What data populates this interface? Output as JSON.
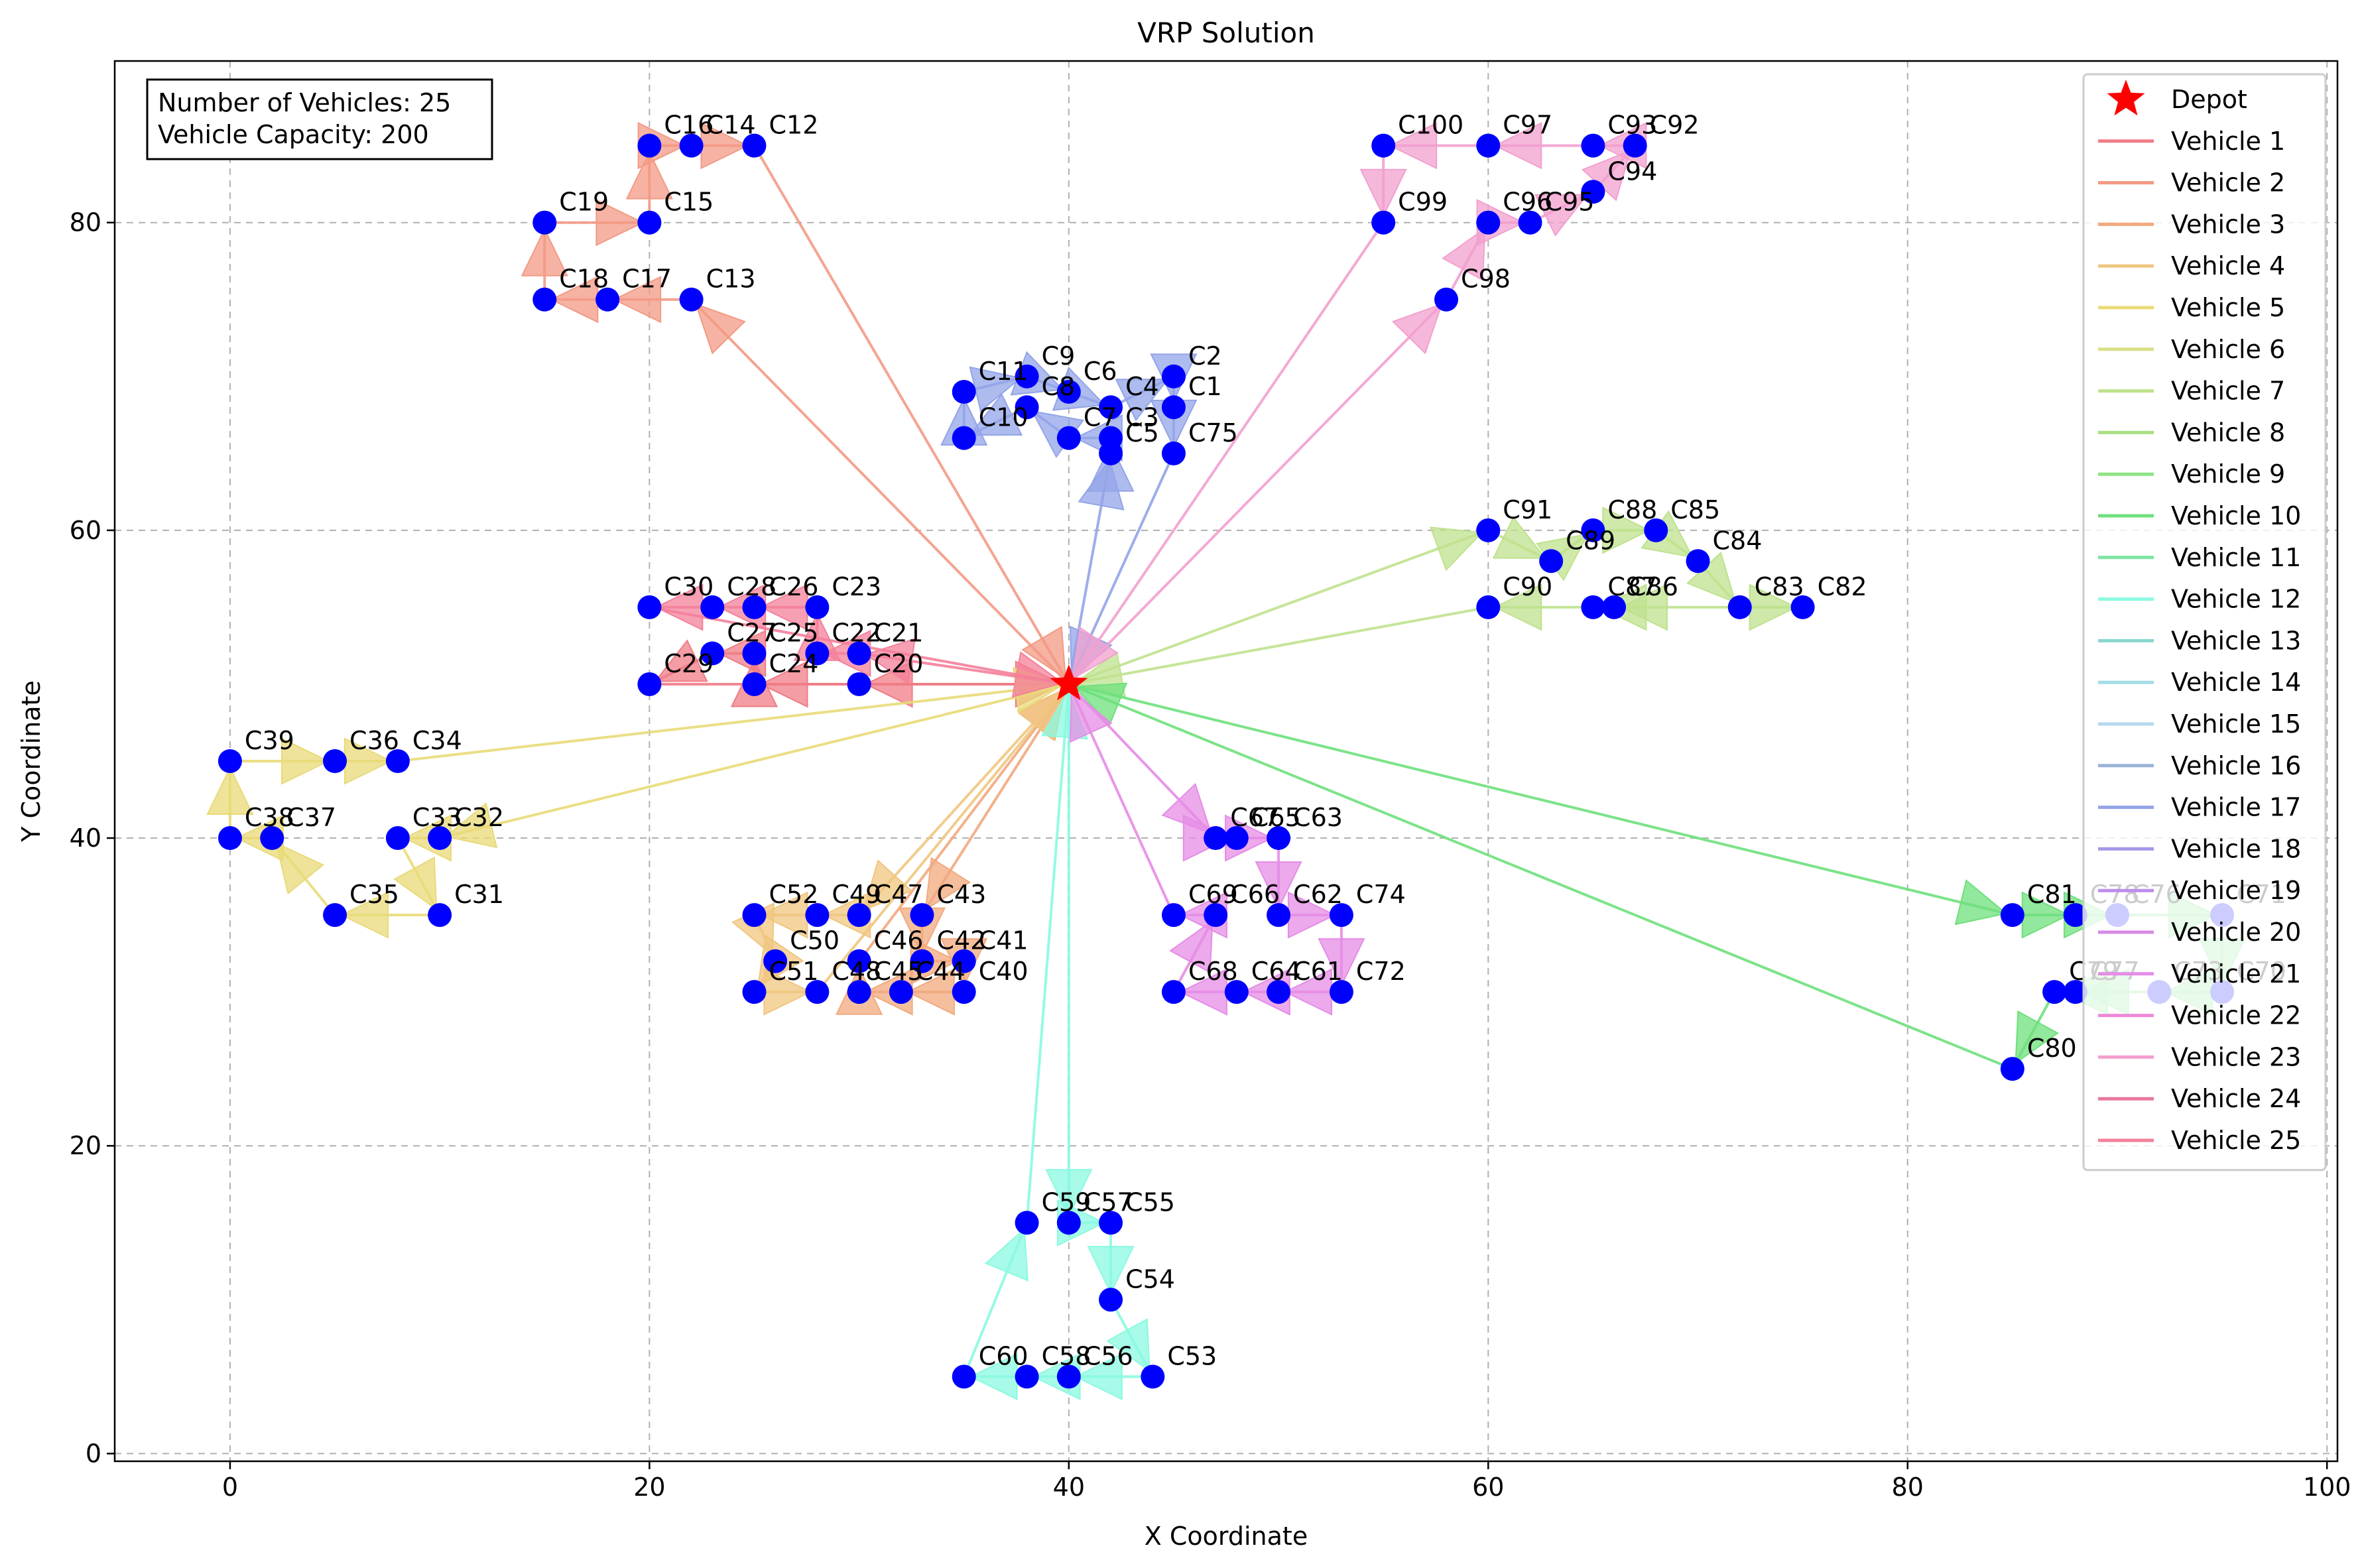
{
  "chart_data": {
    "type": "scatter",
    "title": "VRP Solution",
    "xlabel": "X Coordinate",
    "ylabel": "Y Coordinate",
    "xlim": [
      -5.5,
      100.5
    ],
    "ylim": [
      -0.5,
      90.5
    ],
    "xticks": [
      0,
      20,
      40,
      60,
      80,
      100
    ],
    "yticks": [
      0,
      20,
      40,
      60,
      80
    ],
    "grid": true,
    "legend_placement": "top-right",
    "info_box": [
      "Number of Vehicles: 25",
      "Vehicle Capacity: 200"
    ],
    "depot": {
      "label": "Depot",
      "x": 40,
      "y": 50,
      "color": "#ff0000"
    },
    "customer_color": "#0000ff",
    "customers": [
      {
        "id": "C1",
        "x": 45,
        "y": 68
      },
      {
        "id": "C2",
        "x": 45,
        "y": 70
      },
      {
        "id": "C3",
        "x": 42,
        "y": 66
      },
      {
        "id": "C4",
        "x": 42,
        "y": 68
      },
      {
        "id": "C5",
        "x": 42,
        "y": 65
      },
      {
        "id": "C6",
        "x": 40,
        "y": 69
      },
      {
        "id": "C7",
        "x": 40,
        "y": 66
      },
      {
        "id": "C8",
        "x": 38,
        "y": 68
      },
      {
        "id": "C9",
        "x": 38,
        "y": 70
      },
      {
        "id": "C10",
        "x": 35,
        "y": 66
      },
      {
        "id": "C11",
        "x": 35,
        "y": 69
      },
      {
        "id": "C12",
        "x": 25,
        "y": 85
      },
      {
        "id": "C13",
        "x": 22,
        "y": 75
      },
      {
        "id": "C14",
        "x": 22,
        "y": 85
      },
      {
        "id": "C15",
        "x": 20,
        "y": 80
      },
      {
        "id": "C16",
        "x": 20,
        "y": 85
      },
      {
        "id": "C17",
        "x": 18,
        "y": 75
      },
      {
        "id": "C18",
        "x": 15,
        "y": 75
      },
      {
        "id": "C19",
        "x": 15,
        "y": 80
      },
      {
        "id": "C20",
        "x": 30,
        "y": 50
      },
      {
        "id": "C21",
        "x": 30,
        "y": 52
      },
      {
        "id": "C22",
        "x": 28,
        "y": 52
      },
      {
        "id": "C23",
        "x": 28,
        "y": 55
      },
      {
        "id": "C24",
        "x": 25,
        "y": 50
      },
      {
        "id": "C25",
        "x": 25,
        "y": 52
      },
      {
        "id": "C26",
        "x": 25,
        "y": 55
      },
      {
        "id": "C27",
        "x": 23,
        "y": 52
      },
      {
        "id": "C28",
        "x": 23,
        "y": 55
      },
      {
        "id": "C29",
        "x": 20,
        "y": 50
      },
      {
        "id": "C30",
        "x": 20,
        "y": 55
      },
      {
        "id": "C31",
        "x": 10,
        "y": 35
      },
      {
        "id": "C32",
        "x": 10,
        "y": 40
      },
      {
        "id": "C33",
        "x": 8,
        "y": 40
      },
      {
        "id": "C34",
        "x": 8,
        "y": 45
      },
      {
        "id": "C35",
        "x": 5,
        "y": 35
      },
      {
        "id": "C36",
        "x": 5,
        "y": 45
      },
      {
        "id": "C37",
        "x": 2,
        "y": 40
      },
      {
        "id": "C38",
        "x": 0,
        "y": 40
      },
      {
        "id": "C39",
        "x": 0,
        "y": 45
      },
      {
        "id": "C40",
        "x": 35,
        "y": 30
      },
      {
        "id": "C41",
        "x": 35,
        "y": 32
      },
      {
        "id": "C42",
        "x": 33,
        "y": 32
      },
      {
        "id": "C43",
        "x": 33,
        "y": 35
      },
      {
        "id": "C44",
        "x": 32,
        "y": 30
      },
      {
        "id": "C45",
        "x": 30,
        "y": 30
      },
      {
        "id": "C46",
        "x": 30,
        "y": 32
      },
      {
        "id": "C47",
        "x": 30,
        "y": 35
      },
      {
        "id": "C48",
        "x": 28,
        "y": 30
      },
      {
        "id": "C49",
        "x": 28,
        "y": 35
      },
      {
        "id": "C50",
        "x": 26,
        "y": 32
      },
      {
        "id": "C51",
        "x": 25,
        "y": 30
      },
      {
        "id": "C52",
        "x": 25,
        "y": 35
      },
      {
        "id": "C53",
        "x": 44,
        "y": 5
      },
      {
        "id": "C54",
        "x": 42,
        "y": 10
      },
      {
        "id": "C55",
        "x": 42,
        "y": 15
      },
      {
        "id": "C56",
        "x": 40,
        "y": 5
      },
      {
        "id": "C57",
        "x": 40,
        "y": 15
      },
      {
        "id": "C58",
        "x": 38,
        "y": 5
      },
      {
        "id": "C59",
        "x": 38,
        "y": 15
      },
      {
        "id": "C60",
        "x": 35,
        "y": 5
      },
      {
        "id": "C61",
        "x": 50,
        "y": 30
      },
      {
        "id": "C62",
        "x": 50,
        "y": 35
      },
      {
        "id": "C63",
        "x": 50,
        "y": 40
      },
      {
        "id": "C64",
        "x": 48,
        "y": 30
      },
      {
        "id": "C65",
        "x": 48,
        "y": 40
      },
      {
        "id": "C66",
        "x": 47,
        "y": 35
      },
      {
        "id": "C67",
        "x": 47,
        "y": 40
      },
      {
        "id": "C68",
        "x": 45,
        "y": 30
      },
      {
        "id": "C69",
        "x": 45,
        "y": 35
      },
      {
        "id": "C70",
        "x": 95,
        "y": 30
      },
      {
        "id": "C71",
        "x": 95,
        "y": 35
      },
      {
        "id": "C72",
        "x": 53,
        "y": 30
      },
      {
        "id": "C73",
        "x": 92,
        "y": 30
      },
      {
        "id": "C74",
        "x": 53,
        "y": 35
      },
      {
        "id": "C75",
        "x": 45,
        "y": 65
      },
      {
        "id": "C76",
        "x": 90,
        "y": 35
      },
      {
        "id": "C77",
        "x": 88,
        "y": 30
      },
      {
        "id": "C78",
        "x": 88,
        "y": 35
      },
      {
        "id": "C79",
        "x": 87,
        "y": 30
      },
      {
        "id": "C80",
        "x": 85,
        "y": 25
      },
      {
        "id": "C81",
        "x": 85,
        "y": 35
      },
      {
        "id": "C82",
        "x": 75,
        "y": 55
      },
      {
        "id": "C83",
        "x": 72,
        "y": 55
      },
      {
        "id": "C84",
        "x": 70,
        "y": 58
      },
      {
        "id": "C85",
        "x": 68,
        "y": 60
      },
      {
        "id": "C86",
        "x": 66,
        "y": 55
      },
      {
        "id": "C87",
        "x": 65,
        "y": 55
      },
      {
        "id": "C88",
        "x": 65,
        "y": 60
      },
      {
        "id": "C89",
        "x": 63,
        "y": 58
      },
      {
        "id": "C90",
        "x": 60,
        "y": 55
      },
      {
        "id": "C91",
        "x": 60,
        "y": 60
      },
      {
        "id": "C92",
        "x": 67,
        "y": 85
      },
      {
        "id": "C93",
        "x": 65,
        "y": 85
      },
      {
        "id": "C94",
        "x": 65,
        "y": 82
      },
      {
        "id": "C95",
        "x": 62,
        "y": 80
      },
      {
        "id": "C96",
        "x": 60,
        "y": 80
      },
      {
        "id": "C97",
        "x": 60,
        "y": 85
      },
      {
        "id": "C98",
        "x": 58,
        "y": 75
      },
      {
        "id": "C99",
        "x": 55,
        "y": 80
      },
      {
        "id": "C100",
        "x": 55,
        "y": 85
      }
    ],
    "series": [
      {
        "name": "Vehicle 1",
        "color": "#f07c86",
        "route": [
          "C20",
          "C24",
          "C25",
          "C27",
          "C29"
        ]
      },
      {
        "name": "Vehicle 2",
        "color": "#f39a85",
        "route": [
          "C13",
          "C17",
          "C18",
          "C19",
          "C15",
          "C16",
          "C14",
          "C12"
        ]
      },
      {
        "name": "Vehicle 3",
        "color": "#f2a97e",
        "route": [
          "C43",
          "C42",
          "C41",
          "C40",
          "C44",
          "C45",
          "C46"
        ]
      },
      {
        "name": "Vehicle 4",
        "color": "#f0c67f",
        "route": [
          "C47",
          "C49",
          "C52",
          "C50",
          "C51",
          "C48"
        ]
      },
      {
        "name": "Vehicle 5",
        "color": "#e9da78",
        "route": [
          "C32",
          "C33",
          "C31",
          "C35",
          "C37",
          "C38",
          "C39",
          "C36",
          "C34"
        ]
      },
      {
        "name": "Vehicle 6",
        "color": "#d8df86",
        "route": []
      },
      {
        "name": "Vehicle 7",
        "color": "#bfe28d",
        "route": [
          "C91",
          "C89",
          "C88",
          "C85",
          "C84",
          "C83",
          "C82",
          "C86",
          "C87",
          "C90"
        ]
      },
      {
        "name": "Vehicle 8",
        "color": "#a9df82",
        "route": []
      },
      {
        "name": "Vehicle 9",
        "color": "#8ee483",
        "route": []
      },
      {
        "name": "Vehicle 10",
        "color": "#6ee07c",
        "route": [
          "C81",
          "C78",
          "C76",
          "C71",
          "C70",
          "C73",
          "C77",
          "C79",
          "C80"
        ]
      },
      {
        "name": "Vehicle 11",
        "color": "#7ee5a0",
        "route": []
      },
      {
        "name": "Vehicle 12",
        "color": "#8afae0",
        "route": [
          "C57",
          "C55",
          "C54",
          "C53",
          "C56",
          "C58",
          "C60",
          "C59"
        ]
      },
      {
        "name": "Vehicle 13",
        "color": "#8ad8d0",
        "route": []
      },
      {
        "name": "Vehicle 14",
        "color": "#a4dce6",
        "route": []
      },
      {
        "name": "Vehicle 15",
        "color": "#b6d8ef",
        "route": []
      },
      {
        "name": "Vehicle 16",
        "color": "#9ab4d8",
        "route": []
      },
      {
        "name": "Vehicle 17",
        "color": "#93a4e8",
        "route": [
          "C5",
          "C3",
          "C7",
          "C8",
          "C10",
          "C11",
          "C9",
          "C6",
          "C4",
          "C2",
          "C1",
          "C75"
        ]
      },
      {
        "name": "Vehicle 18",
        "color": "#a697ea",
        "route": []
      },
      {
        "name": "Vehicle 19",
        "color": "#be8ded",
        "route": []
      },
      {
        "name": "Vehicle 20",
        "color": "#d88be6",
        "route": []
      },
      {
        "name": "Vehicle 21",
        "color": "#e58ce6",
        "route": [
          "C67",
          "C65",
          "C63",
          "C62",
          "C74",
          "C72",
          "C61",
          "C64",
          "C68",
          "C66",
          "C69"
        ]
      },
      {
        "name": "Vehicle 22",
        "color": "#ee8ad9",
        "route": []
      },
      {
        "name": "Vehicle 23",
        "color": "#f2a0cf",
        "route": [
          "C98",
          "C96",
          "C95",
          "C94",
          "C92",
          "C93",
          "C97",
          "C100",
          "C99"
        ]
      },
      {
        "name": "Vehicle 24",
        "color": "#e9769f",
        "route": []
      },
      {
        "name": "Vehicle 25",
        "color": "#f4809a",
        "route": [
          "C21",
          "C22",
          "C23",
          "C26",
          "C28",
          "C30"
        ]
      }
    ]
  }
}
